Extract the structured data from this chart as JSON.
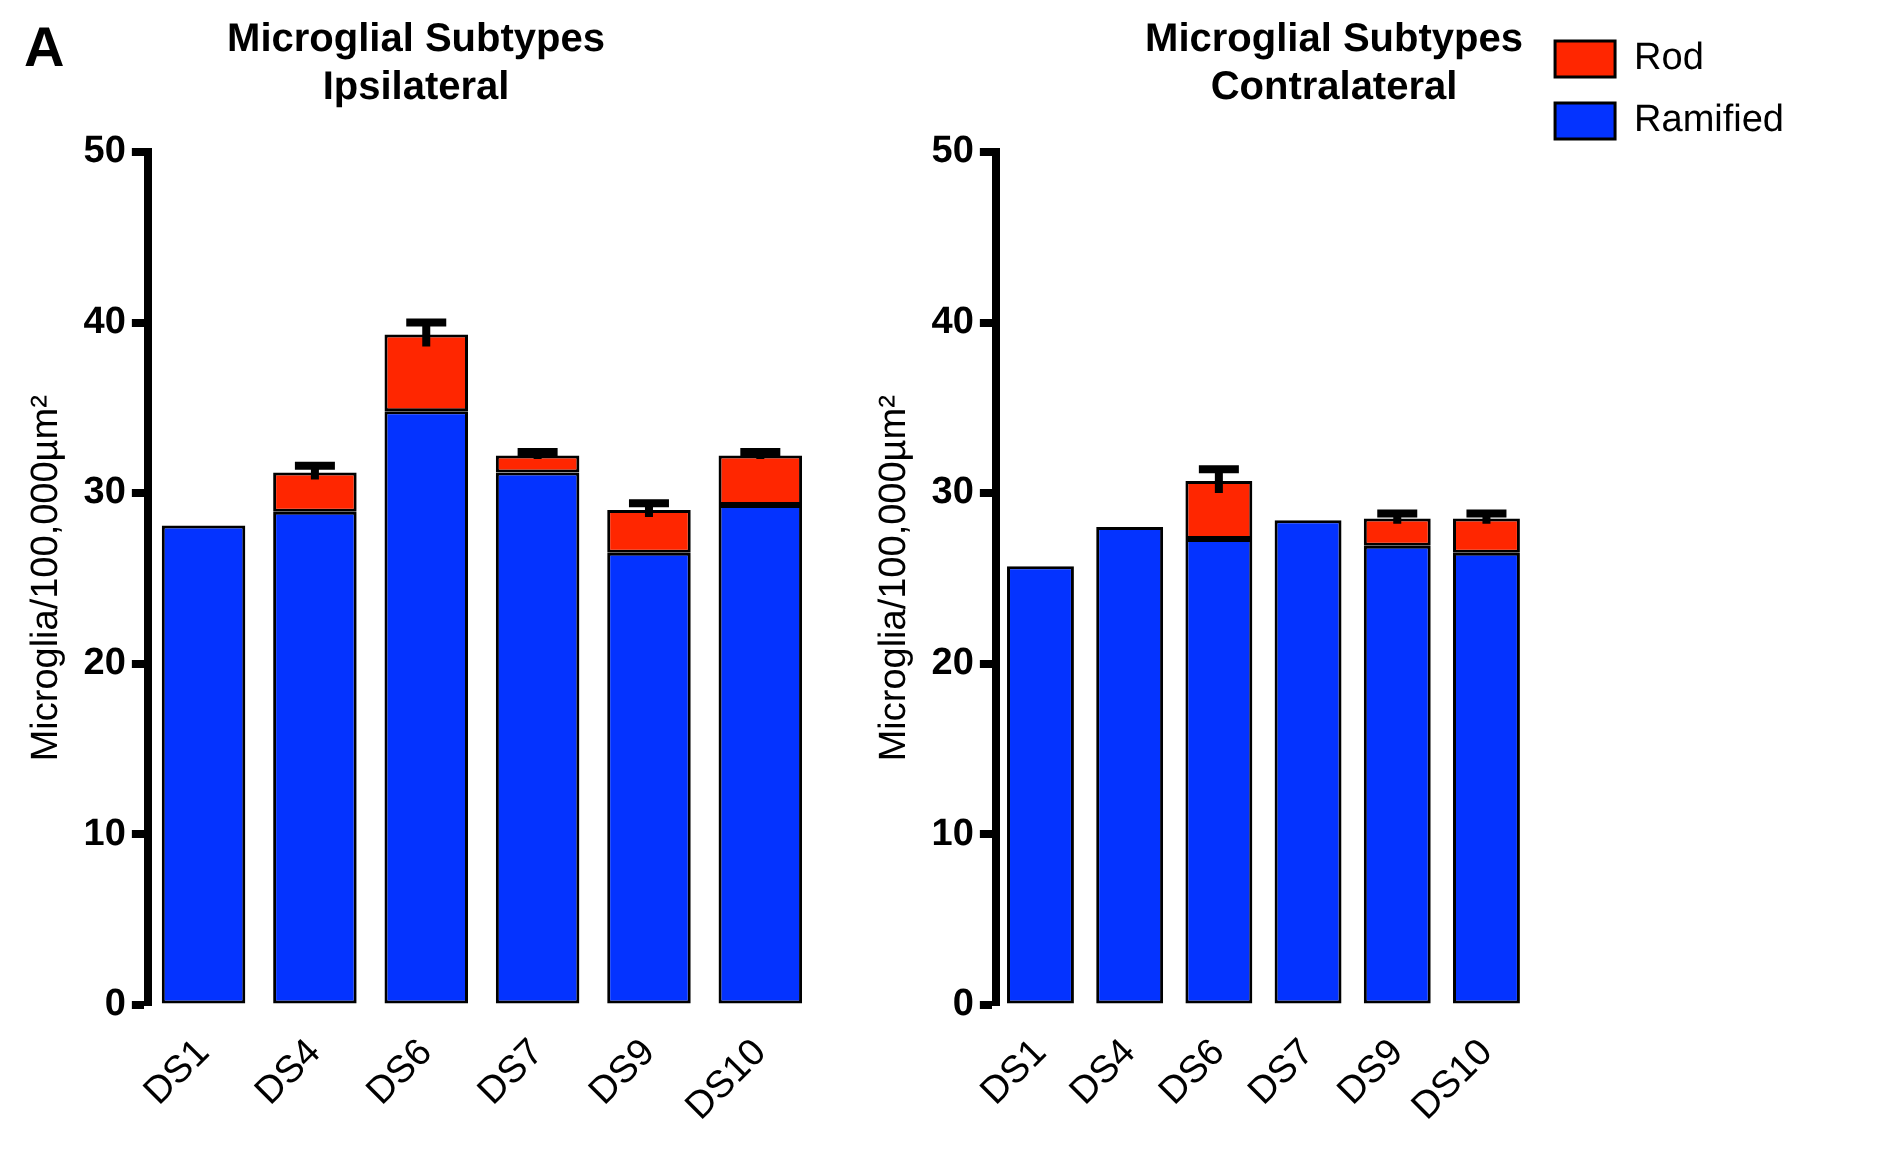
{
  "chart_data": [
    {
      "type": "bar",
      "title": "Microglial Subtypes",
      "subtitle": "Ipsilateral",
      "ylabel": "Microglia/100,000µm²",
      "annotations": [
        "A"
      ],
      "categories": [
        "DS1",
        "DS4",
        "DS6",
        "DS7",
        "DS9",
        "DS10"
      ],
      "stacked": true,
      "grid": false,
      "legend": false,
      "ylim": [
        0,
        50
      ],
      "yticks": [
        0,
        10,
        20,
        30,
        40,
        50
      ],
      "series": [
        {
          "color": "#0433ff",
          "values": [
            28.1,
            28.9,
            34.8,
            31.2,
            26.5,
            29.3
          ]
        },
        {
          "color": "#ff2600",
          "values": [
            null,
            2.3,
            4.5,
            1.0,
            2.5,
            2.9
          ],
          "errors": [
            null,
            0.4,
            0.7,
            0.2,
            0.4,
            0.2
          ]
        }
      ]
    },
    {
      "type": "bar",
      "title": "Microglial Subtypes",
      "subtitle": "Contralateral",
      "ylabel": "Microglia/100,000µm²",
      "categories": [
        "DS1",
        "DS4",
        "DS6",
        "DS7",
        "DS9",
        "DS10"
      ],
      "stacked": true,
      "grid": false,
      "legend": "top right",
      "ylim": [
        0,
        50
      ],
      "yticks": [
        0,
        10,
        20,
        30,
        40,
        50
      ],
      "series": [
        {
          "name": "Ramified",
          "color": "#0433ff",
          "values": [
            25.7,
            28.0,
            27.3,
            28.4,
            26.9,
            26.5
          ]
        },
        {
          "name": "Rod",
          "color": "#ff2600",
          "values": [
            null,
            null,
            3.4,
            null,
            1.6,
            2.0
          ],
          "errors": [
            null,
            null,
            0.7,
            null,
            0.3,
            0.3
          ]
        }
      ]
    }
  ]
}
